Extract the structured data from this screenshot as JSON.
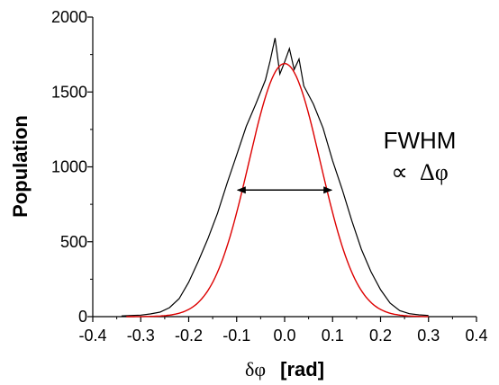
{
  "chart_data": {
    "type": "line",
    "title": "",
    "xlabel_symbol": "δφ",
    "xlabel_unit": "[rad]",
    "ylabel": "Population",
    "xlim": [
      -0.4,
      0.4
    ],
    "ylim": [
      0,
      2000
    ],
    "x_ticks": [
      -0.4,
      -0.3,
      -0.2,
      -0.1,
      0.0,
      0.1,
      0.2,
      0.3,
      0.4
    ],
    "x_tick_labels": [
      "-0.4",
      "-0.3",
      "-0.2",
      "-0.1",
      "0.0",
      "0.1",
      "0.2",
      "0.3",
      "0.4"
    ],
    "y_ticks": [
      0,
      500,
      1000,
      1500,
      2000
    ],
    "y_tick_labels": [
      "0",
      "500",
      "1000",
      "1500",
      "2000"
    ],
    "grid": false,
    "legend": "none",
    "series": [
      {
        "kind": "histogram",
        "color": "#000000",
        "x": [
          -0.34,
          -0.32,
          -0.3,
          -0.28,
          -0.26,
          -0.24,
          -0.22,
          -0.2,
          -0.18,
          -0.16,
          -0.14,
          -0.12,
          -0.1,
          -0.08,
          -0.06,
          -0.04,
          -0.03,
          -0.02,
          -0.01,
          0.0,
          0.01,
          0.02,
          0.03,
          0.04,
          0.06,
          0.08,
          0.1,
          0.12,
          0.14,
          0.16,
          0.18,
          0.2,
          0.22,
          0.24,
          0.26,
          0.28,
          0.3
        ],
        "y": [
          5,
          8,
          10,
          18,
          30,
          60,
          120,
          230,
          370,
          520,
          690,
          890,
          1080,
          1270,
          1420,
          1580,
          1710,
          1860,
          1620,
          1700,
          1790,
          1650,
          1720,
          1540,
          1420,
          1260,
          1040,
          850,
          640,
          450,
          300,
          180,
          90,
          40,
          20,
          12,
          8
        ]
      },
      {
        "kind": "gaussian-fit",
        "color": "#dd0000",
        "amplitude": 1690,
        "center": 0.0,
        "sigma": 0.075
      }
    ],
    "annotations": {
      "line1": "FWHM",
      "line2_symbol": "∝",
      "line2_var": "Δφ",
      "arrow_x": [
        -0.098,
        0.098
      ],
      "arrow_y": 845
    }
  }
}
